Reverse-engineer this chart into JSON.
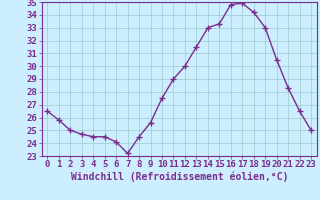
{
  "x": [
    0,
    1,
    2,
    3,
    4,
    5,
    6,
    7,
    8,
    9,
    10,
    11,
    12,
    13,
    14,
    15,
    16,
    17,
    18,
    19,
    20,
    21,
    22,
    23
  ],
  "y": [
    26.5,
    25.8,
    25.0,
    24.7,
    24.5,
    24.5,
    24.1,
    23.2,
    24.5,
    25.6,
    27.5,
    29.0,
    30.0,
    31.5,
    33.0,
    33.3,
    34.8,
    34.9,
    34.2,
    33.0,
    30.5,
    28.3,
    26.5,
    25.0
  ],
  "line_color": "#7b2d8b",
  "marker": "+",
  "marker_size": 4,
  "bg_color": "#cceeff",
  "grid_color": "#99cccc",
  "xlabel": "Windchill (Refroidissement éolien,°C)",
  "ylim": [
    23,
    35
  ],
  "xlim": [
    -0.5,
    23.5
  ],
  "yticks": [
    23,
    24,
    25,
    26,
    27,
    28,
    29,
    30,
    31,
    32,
    33,
    34,
    35
  ],
  "xticks": [
    0,
    1,
    2,
    3,
    4,
    5,
    6,
    7,
    8,
    9,
    10,
    11,
    12,
    13,
    14,
    15,
    16,
    17,
    18,
    19,
    20,
    21,
    22,
    23
  ],
  "axis_color": "#7b2d8b",
  "tick_color": "#7b2d8b",
  "font_size": 6.5,
  "xlabel_fontsize": 7,
  "line_width": 1.0
}
